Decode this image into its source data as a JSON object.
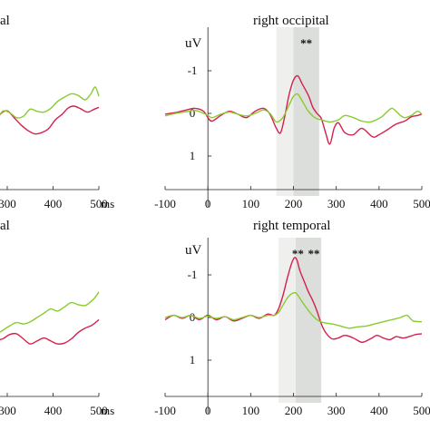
{
  "chart_data": [
    {
      "type": "line",
      "title": "al",
      "ylabel": "",
      "xlabel": "ms",
      "xlim": [
        185,
        505
      ],
      "ylim": [
        -2,
        2
      ],
      "y_inverted": true,
      "x_ticks": [
        300,
        400,
        500
      ],
      "y_ticks": [],
      "significance_band": null,
      "significance_labels": [],
      "colors": {
        "series_a": "#d4204c",
        "series_b": "#88cc2e"
      },
      "series": [
        {
          "values": [
            [
              185,
              0.12
            ],
            [
              200,
              0.02
            ],
            [
              215,
              -0.06
            ],
            [
              230,
              0.02
            ],
            [
              245,
              0.25
            ],
            [
              260,
              0.4
            ],
            [
              270,
              0.28
            ],
            [
              285,
              0.02
            ],
            [
              300,
              -0.06
            ],
            [
              315,
              0.1
            ],
            [
              330,
              0.27
            ],
            [
              345,
              0.4
            ],
            [
              360,
              0.48
            ],
            [
              375,
              0.45
            ],
            [
              390,
              0.36
            ],
            [
              405,
              0.15
            ],
            [
              420,
              0.02
            ],
            [
              432,
              -0.12
            ],
            [
              445,
              -0.17
            ],
            [
              460,
              -0.11
            ],
            [
              475,
              -0.03
            ],
            [
              490,
              -0.1
            ],
            [
              500,
              -0.14
            ]
          ]
        },
        {
          "values": [
            [
              185,
              0.18
            ],
            [
              200,
              0.06
            ],
            [
              215,
              -0.08
            ],
            [
              230,
              0.06
            ],
            [
              245,
              0.25
            ],
            [
              260,
              0.35
            ],
            [
              275,
              0.18
            ],
            [
              290,
              -0.05
            ],
            [
              305,
              -0.02
            ],
            [
              320,
              0.1
            ],
            [
              335,
              0.07
            ],
            [
              350,
              -0.1
            ],
            [
              365,
              -0.05
            ],
            [
              380,
              -0.03
            ],
            [
              395,
              -0.12
            ],
            [
              410,
              -0.28
            ],
            [
              425,
              -0.38
            ],
            [
              440,
              -0.46
            ],
            [
              455,
              -0.42
            ],
            [
              470,
              -0.32
            ],
            [
              482,
              -0.45
            ],
            [
              492,
              -0.62
            ],
            [
              500,
              -0.4
            ]
          ]
        }
      ]
    },
    {
      "type": "line",
      "title": "right occipital",
      "ylabel": "uV",
      "xlabel": "",
      "xlim": [
        -100,
        505
      ],
      "ylim": [
        -2,
        2
      ],
      "y_inverted": true,
      "x_ticks": [
        -100,
        0,
        100,
        200,
        300,
        400,
        500
      ],
      "y_ticks": [
        -1,
        0,
        1
      ],
      "significance_band": {
        "from": 160,
        "to": 260,
        "strong_from": 200,
        "strong_to": 260
      },
      "significance_labels": [
        "**"
      ],
      "colors": {
        "series_a": "#d4204c",
        "series_b": "#88cc2e"
      },
      "series": [
        {
          "values": [
            [
              -100,
              0.02
            ],
            [
              -75,
              -0.02
            ],
            [
              -50,
              -0.08
            ],
            [
              -30,
              -0.12
            ],
            [
              -10,
              -0.05
            ],
            [
              0,
              0.1
            ],
            [
              10,
              0.18
            ],
            [
              30,
              0.05
            ],
            [
              50,
              -0.05
            ],
            [
              70,
              0.02
            ],
            [
              90,
              0.1
            ],
            [
              110,
              -0.05
            ],
            [
              130,
              -0.12
            ],
            [
              145,
              0.02
            ],
            [
              160,
              0.35
            ],
            [
              170,
              0.45
            ],
            [
              180,
              0.05
            ],
            [
              190,
              -0.45
            ],
            [
              200,
              -0.78
            ],
            [
              210,
              -0.88
            ],
            [
              220,
              -0.7
            ],
            [
              235,
              -0.42
            ],
            [
              245,
              -0.15
            ],
            [
              255,
              0.0
            ],
            [
              265,
              0.12
            ],
            [
              275,
              0.45
            ],
            [
              285,
              0.72
            ],
            [
              295,
              0.35
            ],
            [
              305,
              0.22
            ],
            [
              320,
              0.45
            ],
            [
              340,
              0.5
            ],
            [
              360,
              0.35
            ],
            [
              385,
              0.55
            ],
            [
              400,
              0.5
            ],
            [
              420,
              0.38
            ],
            [
              440,
              0.25
            ],
            [
              460,
              0.18
            ],
            [
              475,
              0.08
            ],
            [
              490,
              0.05
            ],
            [
              500,
              0.02
            ]
          ]
        },
        {
          "values": [
            [
              -100,
              0.06
            ],
            [
              -75,
              0.0
            ],
            [
              -50,
              -0.04
            ],
            [
              -30,
              -0.07
            ],
            [
              -10,
              0.0
            ],
            [
              0,
              0.05
            ],
            [
              10,
              0.1
            ],
            [
              30,
              0.02
            ],
            [
              50,
              -0.03
            ],
            [
              70,
              0.02
            ],
            [
              90,
              0.06
            ],
            [
              110,
              0.0
            ],
            [
              130,
              -0.08
            ],
            [
              145,
              0.0
            ],
            [
              160,
              0.2
            ],
            [
              175,
              0.1
            ],
            [
              190,
              -0.2
            ],
            [
              200,
              -0.4
            ],
            [
              210,
              -0.45
            ],
            [
              220,
              -0.3
            ],
            [
              235,
              -0.05
            ],
            [
              250,
              0.1
            ],
            [
              265,
              0.15
            ],
            [
              285,
              0.2
            ],
            [
              305,
              0.15
            ],
            [
              320,
              0.05
            ],
            [
              340,
              0.1
            ],
            [
              360,
              0.18
            ],
            [
              380,
              0.2
            ],
            [
              400,
              0.12
            ],
            [
              410,
              0.05
            ],
            [
              420,
              -0.05
            ],
            [
              430,
              -0.12
            ],
            [
              440,
              -0.05
            ],
            [
              450,
              0.05
            ],
            [
              460,
              0.1
            ],
            [
              475,
              0.05
            ],
            [
              490,
              -0.05
            ],
            [
              500,
              0.02
            ]
          ]
        }
      ]
    },
    {
      "type": "line",
      "title": "al",
      "ylabel": "",
      "xlabel": "ms",
      "xlim": [
        185,
        505
      ],
      "ylim": [
        -2,
        2
      ],
      "y_inverted": true,
      "x_ticks": [
        300,
        400,
        500
      ],
      "y_ticks": [],
      "significance_band": null,
      "significance_labels": [],
      "colors": {
        "series_a": "#d4204c",
        "series_b": "#88cc2e"
      },
      "series": [
        {
          "values": [
            [
              185,
              0.2
            ],
            [
              200,
              0.3
            ],
            [
              215,
              0.42
            ],
            [
              230,
              0.55
            ],
            [
              245,
              0.52
            ],
            [
              260,
              0.5
            ],
            [
              275,
              0.53
            ],
            [
              290,
              0.5
            ],
            [
              305,
              0.4
            ],
            [
              320,
              0.38
            ],
            [
              335,
              0.5
            ],
            [
              350,
              0.62
            ],
            [
              365,
              0.55
            ],
            [
              380,
              0.48
            ],
            [
              395,
              0.55
            ],
            [
              410,
              0.62
            ],
            [
              425,
              0.6
            ],
            [
              440,
              0.5
            ],
            [
              455,
              0.35
            ],
            [
              470,
              0.25
            ],
            [
              485,
              0.18
            ],
            [
              500,
              0.05
            ]
          ]
        },
        {
          "values": [
            [
              185,
              0.0
            ],
            [
              200,
              0.1
            ],
            [
              215,
              0.22
            ],
            [
              230,
              0.35
            ],
            [
              245,
              0.42
            ],
            [
              260,
              0.45
            ],
            [
              275,
              0.4
            ],
            [
              290,
              0.3
            ],
            [
              305,
              0.2
            ],
            [
              320,
              0.12
            ],
            [
              335,
              0.15
            ],
            [
              350,
              0.1
            ],
            [
              365,
              0.0
            ],
            [
              380,
              -0.1
            ],
            [
              395,
              -0.2
            ],
            [
              410,
              -0.15
            ],
            [
              425,
              -0.25
            ],
            [
              440,
              -0.35
            ],
            [
              455,
              -0.3
            ],
            [
              470,
              -0.28
            ],
            [
              480,
              -0.35
            ],
            [
              490,
              -0.45
            ],
            [
              500,
              -0.6
            ]
          ]
        }
      ]
    },
    {
      "type": "line",
      "title": "right temporal",
      "ylabel": "uV",
      "xlabel": "",
      "xlim": [
        -100,
        505
      ],
      "ylim": [
        -2,
        2
      ],
      "y_inverted": true,
      "x_ticks": [
        -100,
        0,
        100,
        200,
        300,
        400,
        500
      ],
      "y_ticks": [
        -1,
        0,
        1
      ],
      "significance_band": {
        "from": 165,
        "to": 265,
        "strong_from": 205,
        "strong_to": 265
      },
      "significance_labels": [
        "**",
        "**"
      ],
      "colors": {
        "series_a": "#d4204c",
        "series_b": "#88cc2e"
      },
      "series": [
        {
          "values": [
            [
              -100,
              0.05
            ],
            [
              -80,
              -0.05
            ],
            [
              -60,
              0.02
            ],
            [
              -40,
              -0.05
            ],
            [
              -20,
              0.05
            ],
            [
              0,
              -0.05
            ],
            [
              20,
              0.05
            ],
            [
              40,
              -0.02
            ],
            [
              60,
              0.08
            ],
            [
              80,
              0.02
            ],
            [
              100,
              -0.05
            ],
            [
              120,
              0.02
            ],
            [
              140,
              -0.08
            ],
            [
              155,
              -0.05
            ],
            [
              165,
              -0.2
            ],
            [
              175,
              -0.5
            ],
            [
              185,
              -0.9
            ],
            [
              195,
              -1.25
            ],
            [
              202,
              -1.4
            ],
            [
              208,
              -1.35
            ],
            [
              215,
              -1.1
            ],
            [
              225,
              -0.85
            ],
            [
              235,
              -0.6
            ],
            [
              245,
              -0.4
            ],
            [
              255,
              -0.15
            ],
            [
              265,
              0.15
            ],
            [
              275,
              0.35
            ],
            [
              290,
              0.5
            ],
            [
              305,
              0.48
            ],
            [
              320,
              0.42
            ],
            [
              340,
              0.48
            ],
            [
              360,
              0.58
            ],
            [
              380,
              0.5
            ],
            [
              395,
              0.42
            ],
            [
              410,
              0.48
            ],
            [
              425,
              0.52
            ],
            [
              440,
              0.45
            ],
            [
              455,
              0.48
            ],
            [
              470,
              0.45
            ],
            [
              485,
              0.4
            ],
            [
              500,
              0.38
            ]
          ]
        },
        {
          "values": [
            [
              -100,
              0.0
            ],
            [
              -80,
              -0.05
            ],
            [
              -60,
              0.0
            ],
            [
              -40,
              -0.05
            ],
            [
              -20,
              0.02
            ],
            [
              0,
              -0.03
            ],
            [
              20,
              0.02
            ],
            [
              40,
              -0.02
            ],
            [
              60,
              0.05
            ],
            [
              80,
              0.0
            ],
            [
              100,
              -0.05
            ],
            [
              120,
              0.0
            ],
            [
              140,
              -0.05
            ],
            [
              155,
              -0.05
            ],
            [
              165,
              -0.12
            ],
            [
              175,
              -0.28
            ],
            [
              185,
              -0.45
            ],
            [
              195,
              -0.55
            ],
            [
              205,
              -0.58
            ],
            [
              215,
              -0.45
            ],
            [
              225,
              -0.3
            ],
            [
              240,
              -0.1
            ],
            [
              255,
              0.05
            ],
            [
              270,
              0.12
            ],
            [
              290,
              0.15
            ],
            [
              310,
              0.2
            ],
            [
              330,
              0.25
            ],
            [
              350,
              0.22
            ],
            [
              370,
              0.2
            ],
            [
              390,
              0.15
            ],
            [
              410,
              0.1
            ],
            [
              430,
              0.05
            ],
            [
              450,
              0.0
            ],
            [
              465,
              -0.05
            ],
            [
              480,
              0.08
            ],
            [
              500,
              0.1
            ]
          ]
        }
      ]
    }
  ]
}
